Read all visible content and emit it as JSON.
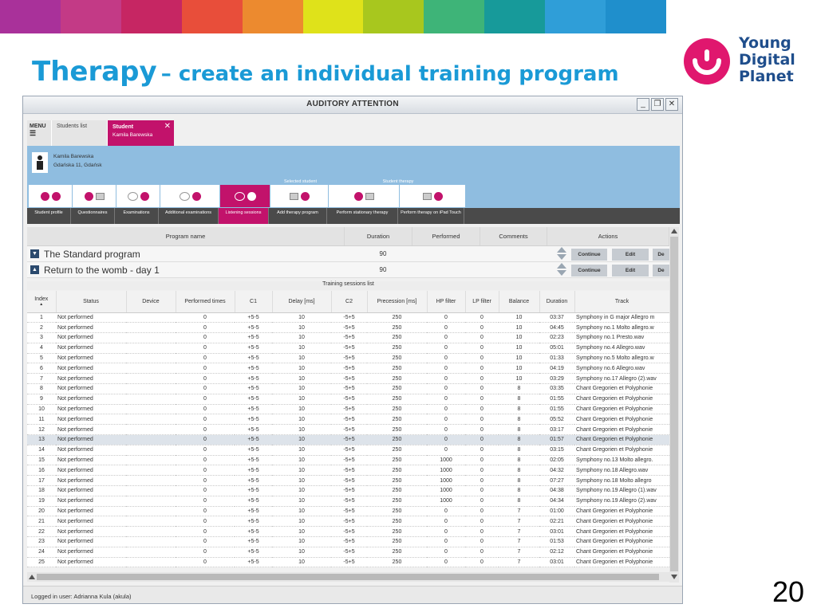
{
  "strip_colors": [
    "#a9319a",
    "#c33a86",
    "#c62663",
    "#e84e3a",
    "#ec8a2f",
    "#dfe21a",
    "#a8c71e",
    "#3eb478",
    "#179a9a",
    "#2f9ed8",
    "#1f8fcc"
  ],
  "slide": {
    "title_main": "Therapy",
    "title_rest": "– create an individual training program",
    "page_number": "20"
  },
  "logo": {
    "line1": "Young",
    "line2": "Digital",
    "line3": "Planet"
  },
  "window": {
    "title": "AUDITORY ATTENTION",
    "minimize": "_",
    "restore": "❐",
    "close": "✕"
  },
  "nav": {
    "menu_label": "MENU",
    "menu_icon": "☰",
    "students_tab": "Students list",
    "active_tab_title": "Student",
    "active_tab_name": "Kamila Barewska",
    "active_tab_close": "✕"
  },
  "student": {
    "name": "Kamila Barewska",
    "address": "Gdańska 11, Gdańsk"
  },
  "groups": {
    "selected_student": "Selected student",
    "student_therapy": "Student therapy"
  },
  "tabs": [
    "Student profile",
    "Questionnaires",
    "Examinations",
    "Additional examinations",
    "Listening sessions",
    "Add therapy program",
    "Perform stationary therapy",
    "Perform therapy on iPad Touch"
  ],
  "programs_table": {
    "headers": {
      "name": "Program name",
      "duration": "Duration",
      "performed": "Performed",
      "comments": "Comments",
      "actions": "Actions"
    },
    "rows": [
      {
        "expander": "▼",
        "name": "The Standard program",
        "duration": "90",
        "continue": "Continue",
        "edit": "Edit",
        "delete": "De"
      },
      {
        "expander": "▲",
        "name": "Return to the womb - day 1",
        "duration": "90",
        "continue": "Continue",
        "edit": "Edit",
        "delete": "De"
      }
    ]
  },
  "sessions": {
    "caption": "Training sessions list",
    "headers": [
      "Index",
      "Status",
      "Device",
      "Performed times",
      "C1",
      "Delay [ms]",
      "C2",
      "Precession [ms]",
      "HP filter",
      "LP filter",
      "Balance",
      "Duration",
      "Track"
    ],
    "sort_indicator": "▲",
    "highlight_index": "13",
    "rows": [
      [
        "1",
        "Not performed",
        "",
        "0",
        "+5-5",
        "10",
        "-5+5",
        "250",
        "0",
        "0",
        "10",
        "03:37",
        "Symphony in G major Allegro m"
      ],
      [
        "2",
        "Not performed",
        "",
        "0",
        "+5-5",
        "10",
        "-5+5",
        "250",
        "0",
        "0",
        "10",
        "04:45",
        "Symphony no.1 Molto allegro.w"
      ],
      [
        "3",
        "Not performed",
        "",
        "0",
        "+5-5",
        "10",
        "-5+5",
        "250",
        "0",
        "0",
        "10",
        "02:23",
        "Symphony no.1 Presto.wav"
      ],
      [
        "4",
        "Not performed",
        "",
        "0",
        "+5-5",
        "10",
        "-5+5",
        "250",
        "0",
        "0",
        "10",
        "05:01",
        "Symphony no.4 Allegro.wav"
      ],
      [
        "5",
        "Not performed",
        "",
        "0",
        "+5-5",
        "10",
        "-5+5",
        "250",
        "0",
        "0",
        "10",
        "01:33",
        "Symphony no.5 Molto allegro.w"
      ],
      [
        "6",
        "Not performed",
        "",
        "0",
        "+5-5",
        "10",
        "-5+5",
        "250",
        "0",
        "0",
        "10",
        "04:19",
        "Symphony no.6 Allegro.wav"
      ],
      [
        "7",
        "Not performed",
        "",
        "0",
        "+5-5",
        "10",
        "-5+5",
        "250",
        "0",
        "0",
        "10",
        "03:29",
        "Symphony no.17 Allegro (2).wav"
      ],
      [
        "8",
        "Not performed",
        "",
        "0",
        "+5-5",
        "10",
        "-5+5",
        "250",
        "0",
        "0",
        "8",
        "03:35",
        "Chant Gregorien et Polyphonie"
      ],
      [
        "9",
        "Not performed",
        "",
        "0",
        "+5-5",
        "10",
        "-5+5",
        "250",
        "0",
        "0",
        "8",
        "01:55",
        "Chant Gregorien et Polyphonie"
      ],
      [
        "10",
        "Not performed",
        "",
        "0",
        "+5-5",
        "10",
        "-5+5",
        "250",
        "0",
        "0",
        "8",
        "01:55",
        "Chant Gregorien et Polyphonie"
      ],
      [
        "11",
        "Not performed",
        "",
        "0",
        "+5-5",
        "10",
        "-5+5",
        "250",
        "0",
        "0",
        "8",
        "05:52",
        "Chant Gregorien et Polyphonie"
      ],
      [
        "12",
        "Not performed",
        "",
        "0",
        "+5-5",
        "10",
        "-5+5",
        "250",
        "0",
        "0",
        "8",
        "03:17",
        "Chant Gregorien et Polyphonie"
      ],
      [
        "13",
        "Not performed",
        "",
        "0",
        "+5-5",
        "10",
        "-5+5",
        "250",
        "0",
        "0",
        "8",
        "01:57",
        "Chant Gregorien et Polyphonie"
      ],
      [
        "14",
        "Not performed",
        "",
        "0",
        "+5-5",
        "10",
        "-5+5",
        "250",
        "0",
        "0",
        "8",
        "03:15",
        "Chant Gregorien et Polyphonie"
      ],
      [
        "15",
        "Not performed",
        "",
        "0",
        "+5-5",
        "10",
        "-5+5",
        "250",
        "1000",
        "0",
        "8",
        "02:05",
        "Symphony no.13 Molto allegro."
      ],
      [
        "16",
        "Not performed",
        "",
        "0",
        "+5-5",
        "10",
        "-5+5",
        "250",
        "1000",
        "0",
        "8",
        "04:32",
        "Symphony no.18 Allegro.wav"
      ],
      [
        "17",
        "Not performed",
        "",
        "0",
        "+5-5",
        "10",
        "-5+5",
        "250",
        "1000",
        "0",
        "8",
        "07:27",
        "Symphony no.18 Molto allegro"
      ],
      [
        "18",
        "Not performed",
        "",
        "0",
        "+5-5",
        "10",
        "-5+5",
        "250",
        "1000",
        "0",
        "8",
        "04:38",
        "Symphony no.19 Allegro (1).wav"
      ],
      [
        "19",
        "Not performed",
        "",
        "0",
        "+5-5",
        "10",
        "-5+5",
        "250",
        "1000",
        "0",
        "8",
        "04:34",
        "Symphony no.19 Allegro (2).wav"
      ],
      [
        "20",
        "Not performed",
        "",
        "0",
        "+5-5",
        "10",
        "-5+5",
        "250",
        "0",
        "0",
        "7",
        "01:00",
        "Chant Gregorien et Polyphonie"
      ],
      [
        "21",
        "Not performed",
        "",
        "0",
        "+5-5",
        "10",
        "-5+5",
        "250",
        "0",
        "0",
        "7",
        "02:21",
        "Chant Gregorien et Polyphonie"
      ],
      [
        "22",
        "Not performed",
        "",
        "0",
        "+5-5",
        "10",
        "-5+5",
        "250",
        "0",
        "0",
        "7",
        "03:01",
        "Chant Gregorien et Polyphonie"
      ],
      [
        "23",
        "Not performed",
        "",
        "0",
        "+5-5",
        "10",
        "-5+5",
        "250",
        "0",
        "0",
        "7",
        "01:53",
        "Chant Gregorien et Polyphonie"
      ],
      [
        "24",
        "Not performed",
        "",
        "0",
        "+5-5",
        "10",
        "-5+5",
        "250",
        "0",
        "0",
        "7",
        "02:12",
        "Chant Gregorien et Polyphonie"
      ],
      [
        "25",
        "Not performed",
        "",
        "0",
        "+5-5",
        "10",
        "-5+5",
        "250",
        "0",
        "0",
        "7",
        "03:01",
        "Chant Gregorien et Polyphonie"
      ]
    ]
  },
  "status_bar": "Logged in user: Adrianna Kula (akula)",
  "colors": {
    "accent": "#c2126b",
    "title_blue": "#1a9ad6",
    "panel_blue": "#8fbde0",
    "logo_pink": "#e0176e",
    "logo_navy": "#1f4e8c"
  }
}
